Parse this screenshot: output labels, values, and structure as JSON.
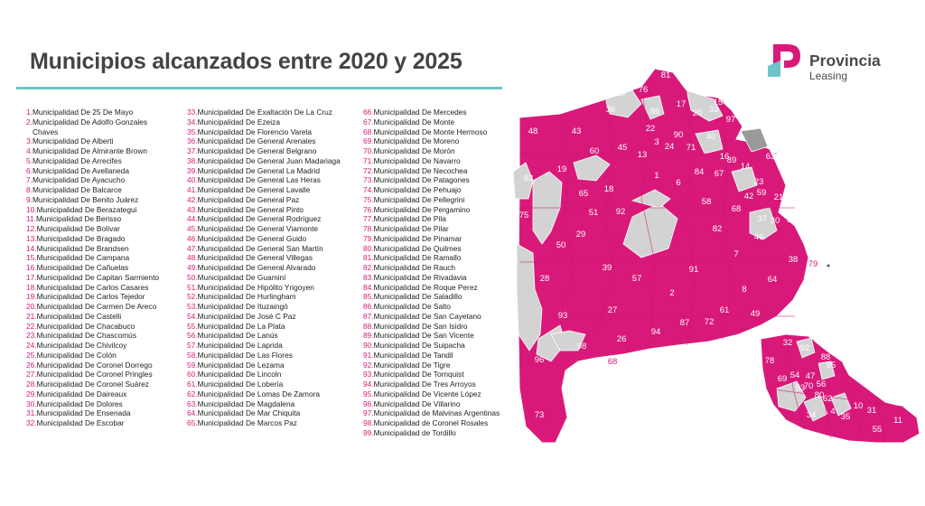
{
  "title": "Municipios alcanzados entre 2020 y 2025",
  "logo": {
    "line1": "Provincia",
    "line2": "Leasing"
  },
  "colors": {
    "accent": "#d9197a",
    "teal": "#6ec5c9",
    "unreached": "#d3d3d3",
    "reached": "#d9197a"
  },
  "columns": [
    [
      {
        "n": "1.",
        "name": "Municipalidad De 25 De Mayo"
      },
      {
        "n": "2.",
        "name": "Municipalidad De Adolfo Gonzales",
        "cont": "Chaves"
      },
      {
        "n": "3.",
        "name": "Municipalidad De Alberti"
      },
      {
        "n": "4.",
        "name": "Municipalidad De Almirante Brown"
      },
      {
        "n": "5.",
        "name": "Municipalidad De Arrecifes"
      },
      {
        "n": "6.",
        "name": "Municipalidad De Avellaneda"
      },
      {
        "n": "7.",
        "name": "Municipalidad De Ayacucho"
      },
      {
        "n": "8.",
        "name": "Municipalidad De Balcarce"
      },
      {
        "n": "9.",
        "name": "Municipalidad De Benito Juárez"
      },
      {
        "n": "10.",
        "name": "Municipalidad De Berazategui"
      },
      {
        "n": "11.",
        "name": "Municipalidad De Berisso"
      },
      {
        "n": "12.",
        "name": "Municipalidad De Bolívar"
      },
      {
        "n": "13.",
        "name": "Municipalidad De Bragado"
      },
      {
        "n": "14.",
        "name": "Municipalidad De Brandsen"
      },
      {
        "n": "15.",
        "name": "Municipalidad De Campana"
      },
      {
        "n": "16.",
        "name": "Municipalidad De Cañuelas"
      },
      {
        "n": "17.",
        "name": "Municipalidad De Capitan Sarmiento"
      },
      {
        "n": "18.",
        "name": "Municipalidad De Carlos Casares"
      },
      {
        "n": "19.",
        "name": "Municipalidad De Carlos Tejedor"
      },
      {
        "n": "20.",
        "name": "Municipalidad De Carmen De Areco"
      },
      {
        "n": "21.",
        "name": "Municipalidad De Castelli"
      },
      {
        "n": "22.",
        "name": "Municipalidad De Chacabuco"
      },
      {
        "n": "23.",
        "name": "Municipalidad De Chascomús"
      },
      {
        "n": "24.",
        "name": "Municipalidad De Chivilcoy"
      },
      {
        "n": "25.",
        "name": "Municipalidad De Colón"
      },
      {
        "n": "26.",
        "name": "Municipalidad De Coronel Dorrego"
      },
      {
        "n": "27.",
        "name": "Municipalidad De Coronel Pringles"
      },
      {
        "n": "28.",
        "name": "Municipalidad De Coronel Suárez"
      },
      {
        "n": "29.",
        "name": "Municipalidad De Daireaux"
      },
      {
        "n": "30.",
        "name": "Municipalidad De Dolores"
      },
      {
        "n": "31.",
        "name": "Municipalidad De Ensenada"
      },
      {
        "n": "32.",
        "name": "Municipalidad De Escobar"
      }
    ],
    [
      {
        "n": "33.",
        "name": "Municipalidad De Exaltación De La Cruz"
      },
      {
        "n": "34.",
        "name": "Municipalidad De Ezeiza"
      },
      {
        "n": "35.",
        "name": "Municipalidad De Florencio Varela"
      },
      {
        "n": "36.",
        "name": "Municipalidad De General Arenales"
      },
      {
        "n": "37.",
        "name": "Municipalidad De General Belgrano"
      },
      {
        "n": "38.",
        "name": "Municipalidad De General Juan Madariaga"
      },
      {
        "n": "39.",
        "name": "Municipalidad De General La Madrid"
      },
      {
        "n": "40.",
        "name": "Municipalidad De General Las Heras"
      },
      {
        "n": "41.",
        "name": "Municipalidad De General Lavalle"
      },
      {
        "n": "42.",
        "name": "Municipalidad De General Paz"
      },
      {
        "n": "43.",
        "name": "Municipalidad De General Pinto"
      },
      {
        "n": "44.",
        "name": "Municipalidad De General Rodríguez"
      },
      {
        "n": "45.",
        "name": "Municipalidad De General Viamonte"
      },
      {
        "n": "46.",
        "name": "Municipalidad De General Guido"
      },
      {
        "n": "47.",
        "name": "Municipalidad De General San Martín"
      },
      {
        "n": "48.",
        "name": "Municipalidad De General Villegas"
      },
      {
        "n": "49.",
        "name": "Municipalidad De General Alvarado"
      },
      {
        "n": "50.",
        "name": "Municipalidad De Guaminí"
      },
      {
        "n": "51.",
        "name": "Municipalidad De Hipólito Yrigoyen"
      },
      {
        "n": "52.",
        "name": "Municipalidad De Hurlingham"
      },
      {
        "n": "53.",
        "name": "Municipalidad De Ituzaingó"
      },
      {
        "n": "54.",
        "name": "Municipalidad De José C Paz"
      },
      {
        "n": "55.",
        "name": "Municipalidad De La Plata"
      },
      {
        "n": "56.",
        "name": "Municipalidad De Lanús"
      },
      {
        "n": "57.",
        "name": "Municipalidad De Laprida"
      },
      {
        "n": "58.",
        "name": "Municipalidad De Las Flores"
      },
      {
        "n": "59.",
        "name": "Municipalidad De Lezama"
      },
      {
        "n": "60.",
        "name": "Municipalidad De Lincoln"
      },
      {
        "n": "61.",
        "name": "Municipalidad De Lobería"
      },
      {
        "n": "62.",
        "name": "Municipalidad De Lomas De Zamora"
      },
      {
        "n": "63.",
        "name": "Municipalidad De Magdalena"
      },
      {
        "n": "64.",
        "name": "Municipalidad De Mar Chiquita"
      },
      {
        "n": "65.",
        "name": "Municipalidad De Marcos Paz"
      }
    ],
    [
      {
        "n": "66.",
        "name": "Municipalidad De Mercedes"
      },
      {
        "n": "67.",
        "name": "Municipalidad De Monte"
      },
      {
        "n": "68.",
        "name": "Municipalidad De Monte Hermoso"
      },
      {
        "n": "69.",
        "name": "Municipalidad De Moreno"
      },
      {
        "n": "70.",
        "name": "Municipalidad De Morón"
      },
      {
        "n": "71.",
        "name": "Municipalidad De Navarro"
      },
      {
        "n": "72.",
        "name": "Municipalidad De Necochea"
      },
      {
        "n": "73.",
        "name": "Municipalidad De Patagones"
      },
      {
        "n": "74.",
        "name": "Municipalidad De Pehuajo"
      },
      {
        "n": "75.",
        "name": "Municipalidad De Pellegrini"
      },
      {
        "n": "76.",
        "name": "Municipalidad De Pergamino"
      },
      {
        "n": "77.",
        "name": "Municipalidad De Pila"
      },
      {
        "n": "78.",
        "name": "Municipalidad De Pilar"
      },
      {
        "n": "79.",
        "name": "Municipalidad De Pinamar"
      },
      {
        "n": "80.",
        "name": "Municipalidad De Quilmes"
      },
      {
        "n": "81.",
        "name": "Municipalidad De Ramallo"
      },
      {
        "n": "82.",
        "name": "Municipalidad De Rauch"
      },
      {
        "n": "83.",
        "name": "Municipalidad De Rivadavia"
      },
      {
        "n": "84.",
        "name": "Municipalidad De Roque Perez"
      },
      {
        "n": "85.",
        "name": "Municipalidad De Saladillo"
      },
      {
        "n": "86.",
        "name": "Municipalidad De Salto"
      },
      {
        "n": "87.",
        "name": "Municipalidad De San Cayetano"
      },
      {
        "n": "88.",
        "name": "Municipalidad De San Isidro"
      },
      {
        "n": "89.",
        "name": "Municipalidad De San Vicente"
      },
      {
        "n": "90.",
        "name": "Municipalidad De Suipacha"
      },
      {
        "n": "91.",
        "name": "Municipalidad De Tandil"
      },
      {
        "n": "92.",
        "name": "Municipalidad De Tigre"
      },
      {
        "n": "93.",
        "name": "Municipalidad De Tornquist"
      },
      {
        "n": "94.",
        "name": "Municipalidad De Tres Arroyos"
      },
      {
        "n": "95.",
        "name": "Municipalidad De Vicente López"
      },
      {
        "n": "96.",
        "name": "Municipalidad De Villarino"
      },
      {
        "n": "97.",
        "name": "Municipalidad de Malvinas Argentinas"
      },
      {
        "n": "98.",
        "name": "Municipalidad de Coronel  Rosales"
      },
      {
        "n": "99.",
        "name": "Municipalidad de Tordillo"
      }
    ]
  ],
  "map_labels": {
    "main": [
      "81",
      "25",
      "76",
      "36",
      "17",
      "20",
      "33",
      "15",
      "97",
      "86",
      "48",
      "43",
      "22",
      "90",
      "40",
      "60",
      "45",
      "13",
      "3",
      "24",
      "71",
      "16",
      "89",
      "19",
      "18",
      "1",
      "84",
      "67",
      "14",
      "63",
      "83",
      "65",
      "6",
      "58",
      "42",
      "23",
      "75",
      "51",
      "92",
      "68",
      "37",
      "59",
      "21",
      "30",
      "99",
      "41",
      "46",
      "50",
      "29",
      "82",
      "38",
      "7",
      "39",
      "57",
      "91",
      "64",
      "2",
      "28",
      "61",
      "8",
      "27",
      "87",
      "72",
      "49",
      "26",
      "94",
      "93",
      "98",
      "96",
      "73"
    ],
    "external": [
      "79",
      "68"
    ],
    "inset": [
      "32",
      "92",
      "88",
      "78",
      "95",
      "69",
      "54",
      "47",
      "56",
      "53",
      "70",
      "80",
      "62",
      "4",
      "10",
      "31",
      "35",
      "34",
      "11",
      "55"
    ]
  }
}
